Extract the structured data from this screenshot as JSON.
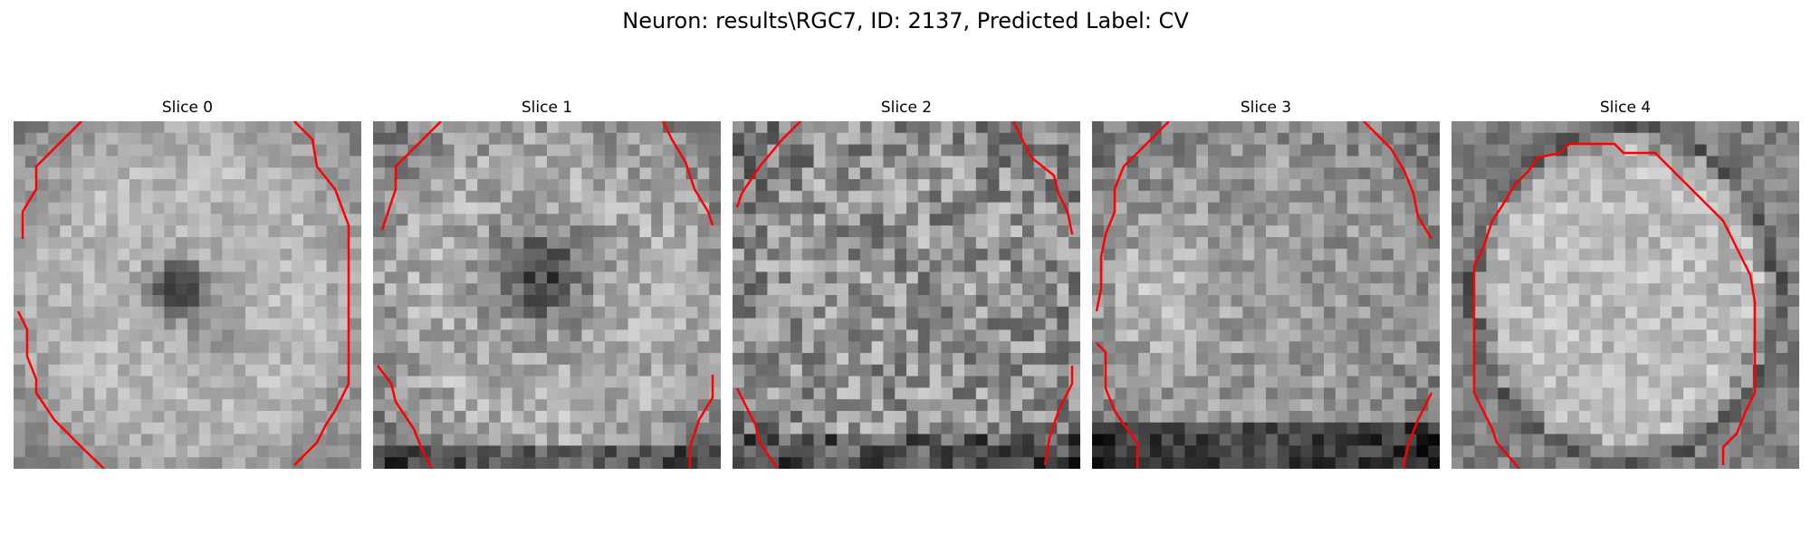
{
  "title": "Neuron: results\\RGC7, ID: 2137, Predicted Label: CV",
  "contour_color": "#ff0000",
  "colormap": "gray",
  "grid": false,
  "slices": [
    {
      "label": "Slice 0",
      "pattern": "dark-center"
    },
    {
      "label": "Slice 1",
      "pattern": "diffuse-dark-center"
    },
    {
      "label": "Slice 2",
      "pattern": "noisy"
    },
    {
      "label": "Slice 3",
      "pattern": "bright-left-dark-bottom"
    },
    {
      "label": "Slice 4",
      "pattern": "bright-oval"
    }
  ]
}
